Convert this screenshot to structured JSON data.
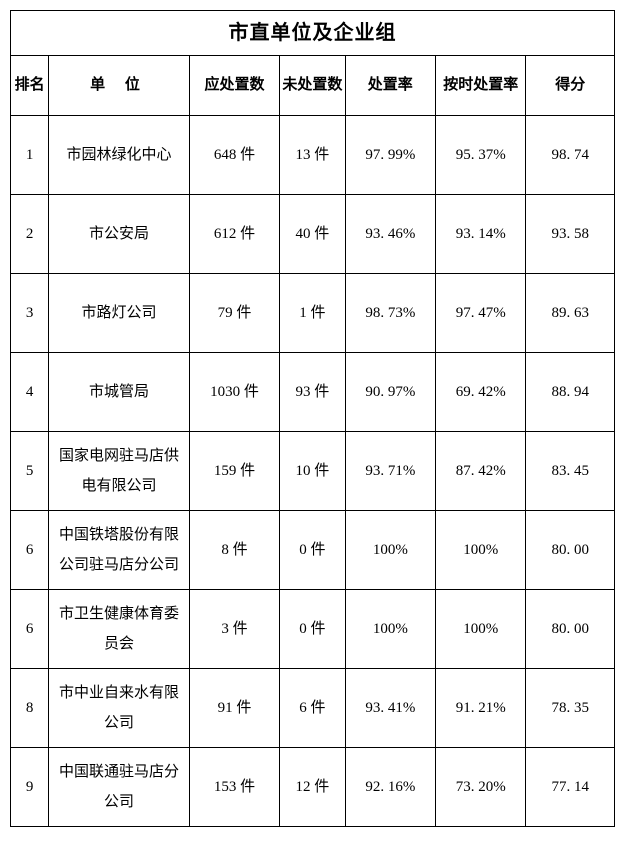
{
  "table": {
    "title": "市直单位及企业组",
    "columns": {
      "rank": "排名",
      "unit": "单 位",
      "should_handle": "应处置数",
      "not_handle": "未处置数",
      "handle_rate": "处置率",
      "ontime_rate": "按时处置率",
      "score": "得分"
    },
    "rows": [
      {
        "rank": "1",
        "unit": "市园林绿化中心",
        "should_handle": "648 件",
        "not_handle": "13 件",
        "handle_rate": "97. 99%",
        "ontime_rate": "95. 37%",
        "score": "98. 74"
      },
      {
        "rank": "2",
        "unit": "市公安局",
        "should_handle": "612 件",
        "not_handle": "40 件",
        "handle_rate": "93. 46%",
        "ontime_rate": "93. 14%",
        "score": "93. 58"
      },
      {
        "rank": "3",
        "unit": "市路灯公司",
        "should_handle": "79 件",
        "not_handle": "1 件",
        "handle_rate": "98. 73%",
        "ontime_rate": "97. 47%",
        "score": "89. 63"
      },
      {
        "rank": "4",
        "unit": "市城管局",
        "should_handle": "1030 件",
        "not_handle": "93 件",
        "handle_rate": "90. 97%",
        "ontime_rate": "69. 42%",
        "score": "88. 94"
      },
      {
        "rank": "5",
        "unit": "国家电网驻马店供电有限公司",
        "should_handle": "159 件",
        "not_handle": "10 件",
        "handle_rate": "93. 71%",
        "ontime_rate": "87. 42%",
        "score": "83. 45"
      },
      {
        "rank": "6",
        "unit": "中国铁塔股份有限公司驻马店分公司",
        "should_handle": "8 件",
        "not_handle": "0 件",
        "handle_rate": "100%",
        "ontime_rate": "100%",
        "score": "80. 00"
      },
      {
        "rank": "6",
        "unit": "市卫生健康体育委员会",
        "should_handle": "3 件",
        "not_handle": "0 件",
        "handle_rate": "100%",
        "ontime_rate": "100%",
        "score": "80. 00"
      },
      {
        "rank": "8",
        "unit": "市中业自来水有限公司",
        "should_handle": "91 件",
        "not_handle": "6 件",
        "handle_rate": "93. 41%",
        "ontime_rate": "91. 21%",
        "score": "78. 35"
      },
      {
        "rank": "9",
        "unit": "中国联通驻马店分公司",
        "should_handle": "153 件",
        "not_handle": "12 件",
        "handle_rate": "92. 16%",
        "ontime_rate": "73. 20%",
        "score": "77. 14"
      }
    ],
    "styling": {
      "border_color": "#000000",
      "background_color": "#ffffff",
      "text_color": "#000000",
      "title_fontsize": 20,
      "header_fontsize": 15,
      "cell_fontsize": 15,
      "font_family": "SimSun"
    }
  }
}
